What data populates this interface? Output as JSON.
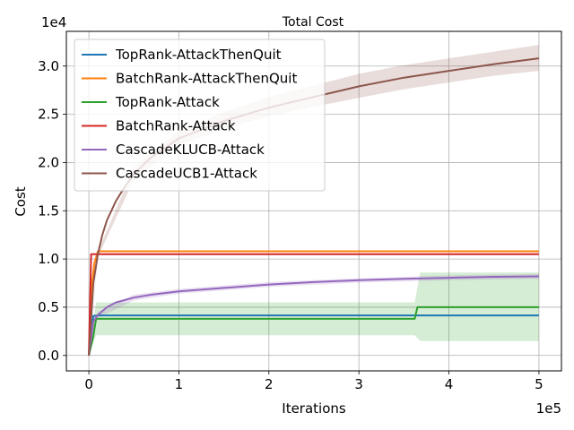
{
  "chart_data": {
    "type": "line",
    "title": "Total Cost",
    "xlabel": "Iterations",
    "ylabel": "Cost",
    "x_multiplier": "1e5",
    "y_multiplier": "1e4",
    "xlim": [
      -25000,
      525000
    ],
    "ylim": [
      -1600,
      33600
    ],
    "xticks": [
      0,
      100000,
      200000,
      300000,
      400000,
      500000
    ],
    "xtick_labels": [
      "0",
      "1",
      "2",
      "3",
      "4",
      "5"
    ],
    "yticks": [
      0,
      5000,
      10000,
      15000,
      20000,
      25000,
      30000
    ],
    "ytick_labels": [
      "0.0",
      "0.5",
      "1.0",
      "1.5",
      "2.0",
      "2.5",
      "3.0"
    ],
    "grid": true,
    "legend_position": "top-left",
    "series": [
      {
        "name": "TopRank-AttackThenQuit",
        "color": "#1f77b4",
        "points": [
          [
            0,
            0
          ],
          [
            5000,
            4100
          ],
          [
            10000,
            4150
          ],
          [
            500000,
            4150
          ]
        ]
      },
      {
        "name": "BatchRank-AttackThenQuit",
        "color": "#ff7f0e",
        "points": [
          [
            0,
            0
          ],
          [
            3000,
            7000
          ],
          [
            6000,
            9500
          ],
          [
            10000,
            10800
          ],
          [
            500000,
            10800
          ]
        ]
      },
      {
        "name": "TopRank-Attack",
        "color": "#2ca02c",
        "points": [
          [
            0,
            0
          ],
          [
            5000,
            2000
          ],
          [
            8000,
            3800
          ],
          [
            362000,
            3800
          ],
          [
            365000,
            5000
          ],
          [
            500000,
            5000
          ]
        ],
        "band_upper": [
          [
            0,
            0
          ],
          [
            8000,
            5500
          ],
          [
            362000,
            5500
          ],
          [
            368000,
            8600
          ],
          [
            500000,
            8600
          ]
        ],
        "band_lower": [
          [
            0,
            0
          ],
          [
            8000,
            2100
          ],
          [
            362000,
            2100
          ],
          [
            368000,
            1500
          ],
          [
            500000,
            1500
          ]
        ]
      },
      {
        "name": "BatchRank-Attack",
        "color": "#d62728",
        "points": [
          [
            0,
            0
          ],
          [
            2500,
            10500
          ],
          [
            500000,
            10500
          ]
        ]
      },
      {
        "name": "CascadeKLUCB-Attack",
        "color": "#9467bd",
        "points": [
          [
            0,
            0
          ],
          [
            5000,
            3500
          ],
          [
            10000,
            4200
          ],
          [
            20000,
            5000
          ],
          [
            30000,
            5500
          ],
          [
            50000,
            6000
          ],
          [
            70000,
            6300
          ],
          [
            100000,
            6650
          ],
          [
            150000,
            7000
          ],
          [
            200000,
            7350
          ],
          [
            250000,
            7600
          ],
          [
            300000,
            7800
          ],
          [
            350000,
            7950
          ],
          [
            400000,
            8050
          ],
          [
            450000,
            8150
          ],
          [
            500000,
            8200
          ]
        ],
        "band_upper": [
          [
            0,
            0
          ],
          [
            10000,
            4500
          ],
          [
            50000,
            6300
          ],
          [
            100000,
            6900
          ],
          [
            200000,
            7600
          ],
          [
            300000,
            8000
          ],
          [
            400000,
            8300
          ],
          [
            500000,
            8450
          ]
        ],
        "band_lower": [
          [
            0,
            0
          ],
          [
            10000,
            3900
          ],
          [
            50000,
            5700
          ],
          [
            100000,
            6400
          ],
          [
            200000,
            7100
          ],
          [
            300000,
            7550
          ],
          [
            400000,
            7800
          ],
          [
            500000,
            7950
          ]
        ]
      },
      {
        "name": "CascadeUCB1-Attack",
        "color": "#8c564b",
        "points": [
          [
            0,
            0
          ],
          [
            5000,
            7500
          ],
          [
            10000,
            10500
          ],
          [
            15000,
            12500
          ],
          [
            20000,
            14000
          ],
          [
            30000,
            16000
          ],
          [
            40000,
            17500
          ],
          [
            50000,
            18800
          ],
          [
            70000,
            20600
          ],
          [
            100000,
            22500
          ],
          [
            150000,
            24300
          ],
          [
            200000,
            25700
          ],
          [
            250000,
            26800
          ],
          [
            300000,
            27900
          ],
          [
            350000,
            28800
          ],
          [
            400000,
            29500
          ],
          [
            450000,
            30200
          ],
          [
            500000,
            30800
          ]
        ],
        "band_upper": [
          [
            0,
            0
          ],
          [
            10000,
            10800
          ],
          [
            50000,
            19500
          ],
          [
            100000,
            23300
          ],
          [
            150000,
            25200
          ],
          [
            200000,
            26800
          ],
          [
            250000,
            28000
          ],
          [
            300000,
            29200
          ],
          [
            350000,
            30100
          ],
          [
            400000,
            30800
          ],
          [
            450000,
            31500
          ],
          [
            500000,
            32200
          ]
        ],
        "band_lower": [
          [
            0,
            0
          ],
          [
            10000,
            10200
          ],
          [
            50000,
            18200
          ],
          [
            100000,
            21800
          ],
          [
            150000,
            23500
          ],
          [
            200000,
            24800
          ],
          [
            250000,
            25800
          ],
          [
            300000,
            26700
          ],
          [
            350000,
            27600
          ],
          [
            400000,
            28300
          ],
          [
            450000,
            29000
          ],
          [
            500000,
            29500
          ]
        ]
      }
    ]
  }
}
